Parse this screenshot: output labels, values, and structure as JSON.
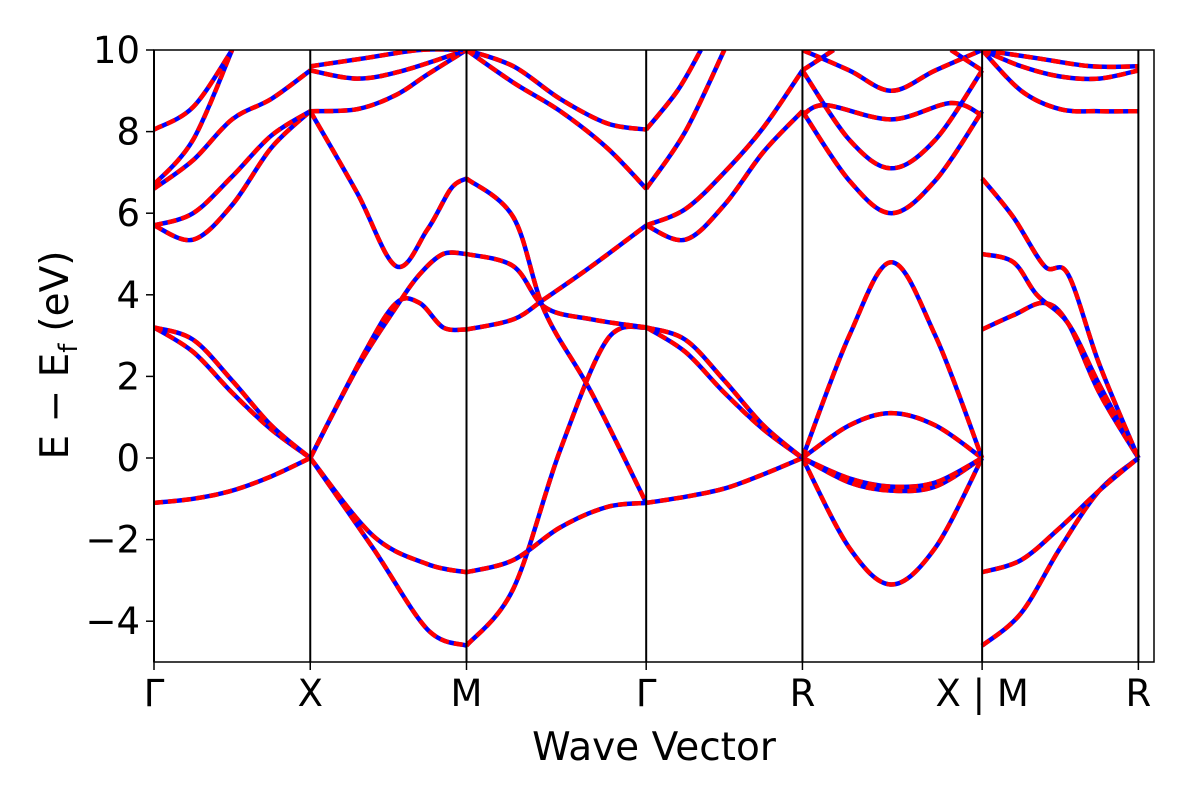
{
  "chart_data": {
    "type": "line",
    "title": "",
    "xlabel": "Wave Vector",
    "ylabel_main": "E − E",
    "ylabel_sub": "f",
    "ylabel_unit": "(eV)",
    "xlim": [
      0,
      6.4
    ],
    "ylim": [
      -5,
      10
    ],
    "yticks": [
      -4,
      -2,
      0,
      2,
      4,
      6,
      8,
      10
    ],
    "ytick_labels": [
      "−4",
      "−2",
      "0",
      "2",
      "4",
      "6",
      "8",
      "10"
    ],
    "grid": false,
    "legend": "none",
    "kpoints": [
      {
        "label": "Γ",
        "x": 0
      },
      {
        "label": "X",
        "x": 1
      },
      {
        "label": "M",
        "x": 2
      },
      {
        "label": "Γ",
        "x": 3.15
      },
      {
        "label": "R",
        "x": 4.15
      },
      {
        "label": "X | M",
        "x": 5.3
      },
      {
        "label": "R",
        "x": 6.3
      }
    ],
    "colors": {
      "red": "#ff0000",
      "blue": "#0000ff",
      "axis": "#000000"
    },
    "series": [
      {
        "name": "",
        "x": [
          0,
          0.25,
          0.5,
          0.75,
          1
        ],
        "y": [
          3.2,
          2.6,
          1.6,
          0.7,
          0
        ]
      },
      {
        "name": "",
        "x": [
          0,
          0.25,
          0.5,
          0.75,
          1
        ],
        "y": [
          3.2,
          2.9,
          1.9,
          0.8,
          0
        ]
      },
      {
        "name": "",
        "x": [
          0,
          0.25,
          0.5,
          0.75,
          1
        ],
        "y": [
          -1.1,
          -1.0,
          -0.8,
          -0.45,
          0
        ]
      },
      {
        "name": "",
        "x": [
          0,
          0.25,
          0.5,
          0.75,
          1
        ],
        "y": [
          5.7,
          5.35,
          6.2,
          7.6,
          8.5
        ]
      },
      {
        "name": "",
        "x": [
          0,
          0.25,
          0.5,
          0.75,
          1
        ],
        "y": [
          5.7,
          6.0,
          6.9,
          7.9,
          8.5
        ]
      },
      {
        "name": "",
        "x": [
          0,
          0.25,
          0.5,
          0.75,
          1
        ],
        "y": [
          6.6,
          7.3,
          8.3,
          8.8,
          9.5
        ]
      },
      {
        "name": "",
        "x": [
          0,
          0.25,
          0.5
        ],
        "y": [
          6.7,
          7.8,
          10
        ]
      },
      {
        "name": "",
        "x": [
          0,
          0.25,
          0.5
        ],
        "y": [
          8.05,
          8.6,
          10
        ]
      },
      {
        "name": "",
        "x": [
          1,
          1.4,
          1.75,
          2
        ],
        "y": [
          0,
          -2.2,
          -4.2,
          -4.6
        ]
      },
      {
        "name": "",
        "x": [
          1,
          1.4,
          1.75,
          2
        ],
        "y": [
          0,
          -1.9,
          -2.6,
          -2.8
        ]
      },
      {
        "name": "",
        "x": [
          1,
          1.3,
          1.55,
          1.7,
          1.85,
          2
        ],
        "y": [
          0,
          2.2,
          3.7,
          4.5,
          5.0,
          5.0
        ]
      },
      {
        "name": "",
        "x": [
          1,
          1.35,
          1.55,
          1.7,
          1.85,
          2
        ],
        "y": [
          0,
          2.6,
          3.8,
          3.8,
          3.2,
          3.15
        ]
      },
      {
        "name": "",
        "x": [
          1,
          1.3,
          1.55,
          1.75,
          1.9,
          2
        ],
        "y": [
          8.5,
          6.5,
          4.7,
          5.6,
          6.6,
          6.85
        ]
      },
      {
        "name": "",
        "x": [
          1,
          1.3,
          1.55,
          1.75,
          2
        ],
        "y": [
          8.5,
          8.55,
          8.9,
          9.4,
          10
        ]
      },
      {
        "name": "",
        "x": [
          1,
          1.3,
          1.6,
          2
        ],
        "y": [
          9.5,
          9.3,
          9.5,
          10
        ]
      },
      {
        "name": "",
        "x": [
          1,
          1.35,
          1.7,
          2
        ],
        "y": [
          9.6,
          9.8,
          10,
          10
        ]
      },
      {
        "name": "",
        "x": [
          2,
          2.3,
          2.6,
          2.9,
          3.15
        ],
        "y": [
          -4.6,
          -3.2,
          0.2,
          2.9,
          3.2
        ]
      },
      {
        "name": "",
        "x": [
          2,
          2.3,
          2.6,
          2.9,
          3.15
        ],
        "y": [
          -2.8,
          -2.5,
          -1.7,
          -1.2,
          -1.1
        ]
      },
      {
        "name": "",
        "x": [
          2,
          2.3,
          2.5,
          2.8,
          3.15
        ],
        "y": [
          3.15,
          3.4,
          3.9,
          4.7,
          5.7
        ]
      },
      {
        "name": "",
        "x": [
          2,
          2.3,
          2.5,
          2.8,
          3.15
        ],
        "y": [
          5.0,
          4.7,
          3.7,
          3.4,
          3.2
        ]
      },
      {
        "name": "",
        "x": [
          2,
          2.3,
          2.5,
          2.8,
          3.15
        ],
        "y": [
          6.85,
          5.9,
          3.6,
          1.6,
          -1.1
        ]
      },
      {
        "name": "",
        "x": [
          2,
          2.3,
          2.6,
          2.9,
          3.15
        ],
        "y": [
          10,
          9.2,
          8.5,
          7.6,
          6.6
        ]
      },
      {
        "name": "",
        "x": [
          2,
          2.3,
          2.6,
          2.9,
          3.15
        ],
        "y": [
          10,
          9.6,
          8.8,
          8.2,
          8.05
        ]
      },
      {
        "name": "",
        "x": [
          3.15,
          3.4,
          3.65,
          3.9,
          4.15
        ],
        "y": [
          -1.1,
          -0.95,
          -0.75,
          -0.4,
          0
        ]
      },
      {
        "name": "",
        "x": [
          3.15,
          3.4,
          3.65,
          3.9,
          4.15
        ],
        "y": [
          3.2,
          2.6,
          1.6,
          0.7,
          0
        ]
      },
      {
        "name": "",
        "x": [
          3.15,
          3.4,
          3.65,
          3.9,
          4.15
        ],
        "y": [
          3.2,
          2.9,
          1.9,
          0.8,
          0
        ]
      },
      {
        "name": "",
        "x": [
          3.15,
          3.4,
          3.65,
          3.9,
          4.15
        ],
        "y": [
          5.7,
          5.35,
          6.2,
          7.5,
          8.5
        ]
      },
      {
        "name": "",
        "x": [
          3.15,
          3.4,
          3.65,
          3.9,
          4.15
        ],
        "y": [
          5.7,
          6.1,
          7.0,
          8.1,
          9.5
        ]
      },
      {
        "name": "",
        "x": [
          3.15,
          3.4,
          3.65
        ],
        "y": [
          6.6,
          8.0,
          10
        ]
      },
      {
        "name": "",
        "x": [
          3.15,
          3.35,
          3.5
        ],
        "y": [
          8.05,
          9.0,
          10
        ]
      },
      {
        "name": "",
        "x": [
          4.15,
          4.45,
          4.72,
          5.0,
          5.3
        ],
        "y": [
          0,
          -2.2,
          -3.1,
          -2.2,
          0
        ]
      },
      {
        "name": "",
        "x": [
          4.15,
          4.45,
          4.72,
          5.0,
          5.3
        ],
        "y": [
          0,
          -0.6,
          -0.8,
          -0.7,
          0
        ]
      },
      {
        "name": "",
        "x": [
          4.15,
          4.45,
          4.72,
          5.0,
          5.3
        ],
        "y": [
          0,
          -0.5,
          -0.7,
          -0.6,
          0
        ]
      },
      {
        "name": "",
        "x": [
          4.15,
          4.45,
          4.72,
          5.0,
          5.3
        ],
        "y": [
          0,
          0.8,
          1.1,
          0.8,
          0
        ]
      },
      {
        "name": "",
        "x": [
          4.15,
          4.45,
          4.72,
          5.0,
          5.3
        ],
        "y": [
          0,
          3.0,
          4.8,
          3.0,
          0
        ]
      },
      {
        "name": "",
        "x": [
          4.15,
          4.45,
          4.72,
          5.0,
          5.3
        ],
        "y": [
          8.5,
          6.8,
          6.0,
          6.8,
          8.5
        ]
      },
      {
        "name": "",
        "x": [
          4.15,
          4.45,
          4.72,
          5.0,
          5.3
        ],
        "y": [
          9.5,
          7.8,
          7.1,
          7.8,
          9.5
        ]
      },
      {
        "name": "",
        "x": [
          4.15,
          4.3,
          4.72,
          5.1,
          5.3
        ],
        "y": [
          8.4,
          8.65,
          8.3,
          8.7,
          8.4
        ]
      },
      {
        "name": "",
        "x": [
          4.15,
          4.45,
          4.72,
          5.0,
          5.3
        ],
        "y": [
          10,
          9.5,
          9.0,
          9.5,
          10
        ]
      },
      {
        "name": "",
        "x": [
          4.15,
          4.35
        ],
        "y": [
          9.5,
          10
        ]
      },
      {
        "name": "",
        "x": [
          5.1,
          5.3
        ],
        "y": [
          10,
          9.5
        ]
      },
      {
        "name": "",
        "x": [
          5.3,
          5.55,
          5.8,
          6.05,
          6.3
        ],
        "y": [
          -4.6,
          -3.8,
          -2.2,
          -0.8,
          0
        ]
      },
      {
        "name": "",
        "x": [
          5.3,
          5.55,
          5.8,
          6.05,
          6.3
        ],
        "y": [
          -2.8,
          -2.5,
          -1.7,
          -0.8,
          0
        ]
      },
      {
        "name": "",
        "x": [
          5.3,
          5.5,
          5.7,
          5.85,
          6.05,
          6.3
        ],
        "y": [
          3.15,
          3.5,
          3.8,
          3.3,
          1.6,
          0
        ]
      },
      {
        "name": "",
        "x": [
          5.3,
          5.5,
          5.65,
          5.85,
          6.05,
          6.3
        ],
        "y": [
          5.0,
          4.8,
          4.0,
          3.3,
          1.8,
          0
        ]
      },
      {
        "name": "",
        "x": [
          5.3,
          5.5,
          5.7,
          5.85,
          6.05,
          6.3
        ],
        "y": [
          6.85,
          5.9,
          4.7,
          4.5,
          2.3,
          0
        ]
      },
      {
        "name": "",
        "x": [
          5.3,
          5.55,
          5.8,
          6.05,
          6.3
        ],
        "y": [
          10,
          9.0,
          8.55,
          8.5,
          8.5
        ]
      },
      {
        "name": "",
        "x": [
          5.3,
          5.55,
          5.8,
          6.05,
          6.3
        ],
        "y": [
          10,
          9.6,
          9.35,
          9.3,
          9.5
        ]
      },
      {
        "name": "",
        "x": [
          5.3,
          5.65,
          6.0,
          6.3
        ],
        "y": [
          10,
          9.8,
          9.6,
          9.6
        ]
      }
    ]
  }
}
